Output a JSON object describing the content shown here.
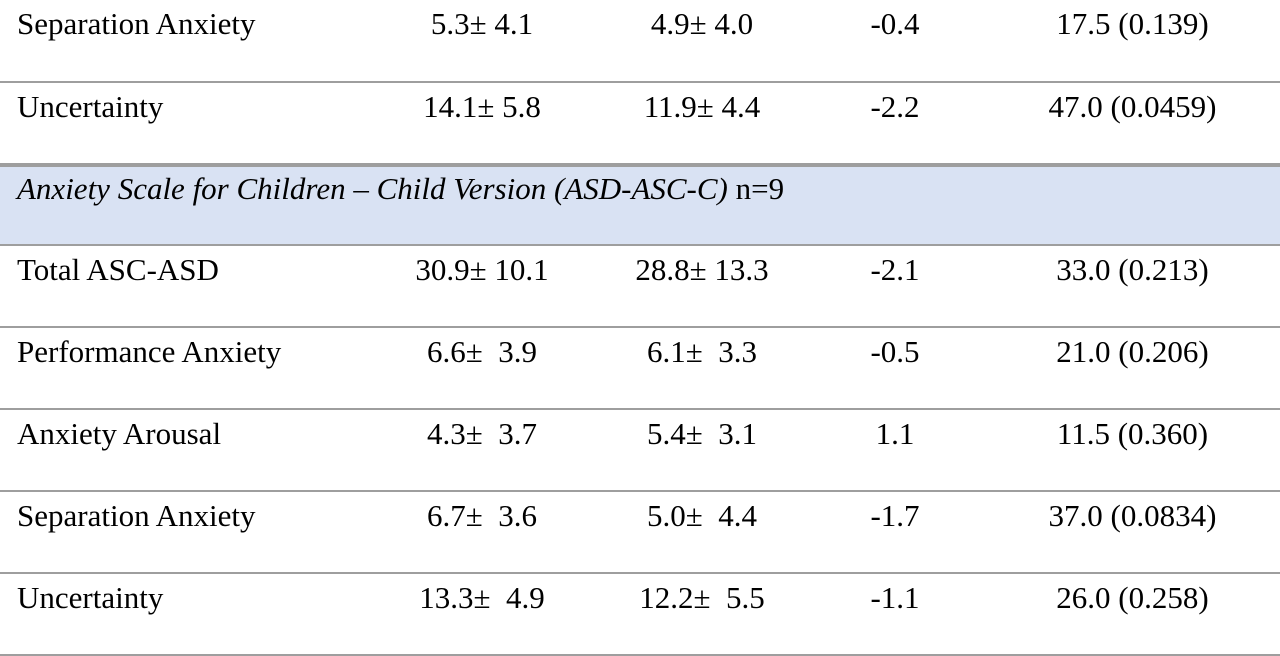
{
  "group1_rows": [
    {
      "label": "Separation Anxiety",
      "pre": "5.3± 4.1",
      "post": "4.9± 4.0",
      "diff": "-0.4",
      "stat": "17.5 (0.139)"
    },
    {
      "label": "Uncertainty",
      "pre": "14.1± 5.8",
      "post": "11.9± 4.4",
      "diff": "-2.2",
      "stat": "47.0 (0.0459)"
    }
  ],
  "section": {
    "title": "Anxiety Scale for Children – Child Version (ASD-ASC-C)",
    "n": " n=9"
  },
  "group2_rows": [
    {
      "label": "Total ASC-ASD",
      "pre": "30.9± 10.1",
      "post": "28.8± 13.3",
      "diff": "-2.1",
      "stat": "33.0 (0.213)"
    },
    {
      "label": "Performance Anxiety",
      "pre": "6.6±  3.9",
      "post": "6.1±  3.3",
      "diff": "-0.5",
      "stat": "21.0 (0.206)"
    },
    {
      "label": "Anxiety Arousal",
      "pre": "4.3±  3.7",
      "post": "5.4±  3.1",
      "diff": "1.1",
      "stat": "11.5 (0.360)"
    },
    {
      "label": "Separation Anxiety",
      "pre": "6.7±  3.6",
      "post": "5.0±  4.4",
      "diff": "-1.7",
      "stat": "37.0 (0.0834)"
    },
    {
      "label": "Uncertainty",
      "pre": "13.3±  4.9",
      "post": "12.2±  5.5",
      "diff": "-1.1",
      "stat": "26.0 (0.258)"
    }
  ]
}
